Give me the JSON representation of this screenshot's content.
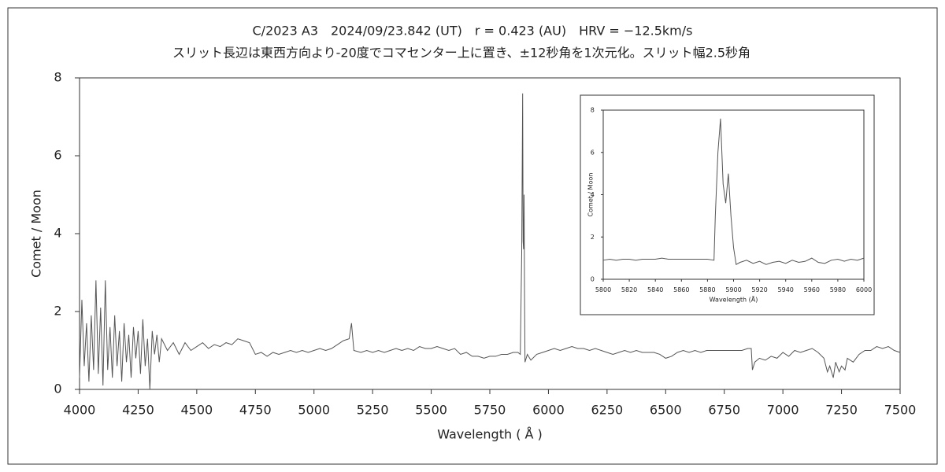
{
  "chart_data": [
    {
      "type": "line",
      "title": "C/2023 A3　2024/09/23.842 (UT)　r = 0.423 (AU)　HRV = −12.5km/s",
      "subtitle": "スリット長辺は東西方向より-20度でコマセンター上に置き、±12秒角を1次元化。スリット幅2.5秒角",
      "x_label": "Wavelength ( Å )",
      "y_label": "Comet / Moon",
      "xlim": [
        4000,
        7500
      ],
      "xticks": [
        4000,
        4250,
        4500,
        4750,
        5000,
        5250,
        5500,
        5750,
        6000,
        6250,
        6500,
        6750,
        7000,
        7250,
        7500
      ],
      "ylim": [
        0,
        8
      ],
      "yticks": [
        0,
        2,
        4,
        6,
        8
      ],
      "series": [
        {
          "color": "#555555",
          "x": [
            4000,
            4010,
            4020,
            4030,
            4040,
            4050,
            4060,
            4070,
            4080,
            4090,
            4100,
            4110,
            4120,
            4130,
            4140,
            4150,
            4160,
            4170,
            4180,
            4190,
            4200,
            4210,
            4220,
            4230,
            4240,
            4250,
            4260,
            4270,
            4280,
            4290,
            4300,
            4310,
            4320,
            4330,
            4340,
            4350,
            4375,
            4400,
            4425,
            4450,
            4475,
            4500,
            4525,
            4550,
            4575,
            4600,
            4625,
            4650,
            4675,
            4700,
            4725,
            4750,
            4775,
            4800,
            4825,
            4850,
            4875,
            4900,
            4925,
            4950,
            4975,
            5000,
            5025,
            5050,
            5075,
            5100,
            5125,
            5150,
            5160,
            5170,
            5200,
            5225,
            5250,
            5275,
            5300,
            5325,
            5350,
            5375,
            5400,
            5425,
            5450,
            5475,
            5500,
            5525,
            5550,
            5575,
            5600,
            5625,
            5650,
            5675,
            5700,
            5725,
            5750,
            5775,
            5800,
            5825,
            5850,
            5870,
            5880,
            5886,
            5888,
            5890,
            5892,
            5894,
            5896,
            5898,
            5900,
            5910,
            5925,
            5950,
            5975,
            6000,
            6025,
            6050,
            6075,
            6100,
            6125,
            6150,
            6175,
            6200,
            6225,
            6250,
            6275,
            6300,
            6325,
            6350,
            6375,
            6400,
            6425,
            6450,
            6475,
            6500,
            6525,
            6550,
            6575,
            6600,
            6625,
            6650,
            6675,
            6700,
            6725,
            6750,
            6775,
            6800,
            6825,
            6850,
            6865,
            6870,
            6880,
            6900,
            6925,
            6950,
            6975,
            7000,
            7025,
            7050,
            7075,
            7100,
            7125,
            7150,
            7175,
            7190,
            7200,
            7215,
            7225,
            7240,
            7250,
            7265,
            7275,
            7300,
            7325,
            7350,
            7375,
            7400,
            7425,
            7450,
            7475,
            7500
          ],
          "values": [
            0.3,
            2.3,
            0.6,
            1.7,
            0.2,
            1.9,
            0.5,
            2.8,
            0.4,
            2.1,
            0.1,
            2.8,
            0.5,
            1.6,
            0.3,
            1.9,
            0.6,
            1.5,
            0.2,
            1.7,
            0.7,
            1.4,
            0.3,
            1.6,
            0.8,
            1.5,
            0.4,
            1.8,
            0.6,
            1.3,
            0.0,
            1.5,
            0.9,
            1.4,
            0.7,
            1.3,
            1.0,
            1.2,
            0.9,
            1.2,
            1.0,
            1.1,
            1.2,
            1.05,
            1.15,
            1.1,
            1.2,
            1.15,
            1.3,
            1.25,
            1.2,
            0.9,
            0.95,
            0.85,
            0.95,
            0.9,
            0.95,
            1.0,
            0.95,
            1.0,
            0.95,
            1.0,
            1.05,
            1.0,
            1.05,
            1.15,
            1.25,
            1.3,
            1.7,
            1.0,
            0.95,
            1.0,
            0.95,
            1.0,
            0.95,
            1.0,
            1.05,
            1.0,
            1.05,
            1.0,
            1.1,
            1.05,
            1.05,
            1.1,
            1.05,
            1.0,
            1.05,
            0.9,
            0.95,
            0.85,
            0.85,
            0.8,
            0.85,
            0.85,
            0.9,
            0.9,
            0.95,
            0.95,
            0.9,
            3.5,
            5.5,
            7.6,
            3.8,
            3.6,
            5.0,
            2.5,
            0.7,
            0.9,
            0.75,
            0.9,
            0.95,
            1.0,
            1.05,
            1.0,
            1.05,
            1.1,
            1.05,
            1.05,
            1.0,
            1.05,
            1.0,
            0.95,
            0.9,
            0.95,
            1.0,
            0.95,
            1.0,
            0.95,
            0.95,
            0.95,
            0.9,
            0.8,
            0.85,
            0.95,
            1.0,
            0.95,
            1.0,
            0.95,
            1.0,
            1.0,
            1.0,
            1.0,
            1.0,
            1.0,
            1.0,
            1.05,
            1.05,
            0.5,
            0.7,
            0.8,
            0.75,
            0.85,
            0.8,
            0.95,
            0.85,
            1.0,
            0.95,
            1.0,
            1.05,
            0.95,
            0.8,
            0.45,
            0.6,
            0.3,
            0.7,
            0.45,
            0.6,
            0.5,
            0.8,
            0.7,
            0.9,
            1.0,
            1.0,
            1.1,
            1.05,
            1.1,
            1.0,
            0.95
          ]
        }
      ]
    },
    {
      "type": "line",
      "x_label": "Wavelength (Å)",
      "y_label": "Comet / Moon",
      "xlim": [
        5800,
        6000
      ],
      "xticks": [
        5800,
        5820,
        5840,
        5860,
        5880,
        5900,
        5920,
        5940,
        5960,
        5980,
        6000
      ],
      "ylim": [
        0,
        8
      ],
      "yticks": [
        0,
        2,
        4,
        6,
        8
      ],
      "series": [
        {
          "color": "#555555",
          "x": [
            5800,
            5805,
            5810,
            5815,
            5820,
            5825,
            5830,
            5835,
            5840,
            5845,
            5850,
            5855,
            5860,
            5865,
            5870,
            5875,
            5880,
            5885,
            5886,
            5888,
            5890,
            5892,
            5894,
            5896,
            5898,
            5900,
            5902,
            5905,
            5910,
            5915,
            5920,
            5925,
            5930,
            5935,
            5940,
            5945,
            5950,
            5955,
            5960,
            5965,
            5970,
            5975,
            5980,
            5985,
            5990,
            5995,
            6000
          ],
          "values": [
            0.9,
            0.95,
            0.9,
            0.95,
            0.95,
            0.9,
            0.95,
            0.95,
            0.95,
            1.0,
            0.95,
            0.95,
            0.95,
            0.95,
            0.95,
            0.95,
            0.95,
            0.9,
            3.0,
            6.0,
            7.6,
            4.5,
            3.6,
            5.0,
            3.0,
            1.5,
            0.7,
            0.8,
            0.9,
            0.75,
            0.85,
            0.7,
            0.8,
            0.85,
            0.75,
            0.9,
            0.8,
            0.85,
            1.0,
            0.8,
            0.75,
            0.9,
            0.95,
            0.85,
            0.95,
            0.9,
            1.0
          ]
        }
      ]
    }
  ]
}
